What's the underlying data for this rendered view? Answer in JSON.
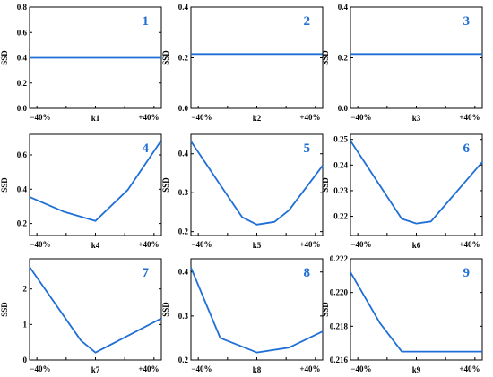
{
  "figure": {
    "line_color": "#1f6fd6",
    "number_color": "#1f6fd6"
  },
  "chart_data": [
    {
      "type": "line",
      "panel_number": "1",
      "xlabel": "k1",
      "ylabel": "SSD",
      "x_tick_labels": [
        "−40%",
        "+40%"
      ],
      "y_ticks": [
        0.0,
        0.2,
        0.4,
        0.6,
        0.8
      ],
      "y_tick_labels": [
        "0.0",
        "0.2",
        "0.4",
        "0.6",
        "0.8"
      ],
      "ylim": [
        0.0,
        0.8
      ],
      "xlim": [
        -45,
        45
      ],
      "x": [
        -45,
        45
      ],
      "y": [
        0.4,
        0.4
      ]
    },
    {
      "type": "line",
      "panel_number": "2",
      "xlabel": "k2",
      "ylabel": "SSD",
      "x_tick_labels": [
        "−40%",
        "+40%"
      ],
      "y_ticks": [
        0.0,
        0.2,
        0.4
      ],
      "y_tick_labels": [
        "0.0",
        "0.2",
        "0.4"
      ],
      "ylim": [
        0.0,
        0.4
      ],
      "xlim": [
        -45,
        45
      ],
      "x": [
        -45,
        45
      ],
      "y": [
        0.215,
        0.215
      ]
    },
    {
      "type": "line",
      "panel_number": "3",
      "xlabel": "k3",
      "ylabel": "SSD",
      "x_tick_labels": [
        "−40%",
        "+40%"
      ],
      "y_ticks": [
        0.0,
        0.2,
        0.4
      ],
      "y_tick_labels": [
        "0.0",
        "0.2",
        "0.4"
      ],
      "ylim": [
        0.0,
        0.4
      ],
      "xlim": [
        -45,
        45
      ],
      "x": [
        -45,
        45
      ],
      "y": [
        0.215,
        0.215
      ]
    },
    {
      "type": "line",
      "panel_number": "4",
      "xlabel": "k4",
      "ylabel": "SSD",
      "x_tick_labels": [
        "−40%",
        "+40%"
      ],
      "y_ticks": [
        0.2,
        0.4,
        0.6
      ],
      "y_tick_labels": [
        "0.2",
        "0.4",
        "0.6"
      ],
      "ylim": [
        0.13,
        0.72
      ],
      "xlim": [
        -45,
        45
      ],
      "x": [
        -45,
        -22,
        0,
        22,
        45
      ],
      "y": [
        0.355,
        0.27,
        0.215,
        0.395,
        0.685
      ]
    },
    {
      "type": "line",
      "panel_number": "5",
      "xlabel": "k5",
      "ylabel": "SSD",
      "x_tick_labels": [
        "−40%",
        "+40%"
      ],
      "y_ticks": [
        0.2,
        0.3,
        0.4
      ],
      "y_tick_labels": [
        "0.2",
        "0.3",
        "0.4"
      ],
      "ylim": [
        0.19,
        0.45
      ],
      "xlim": [
        -45,
        45
      ],
      "x": [
        -45,
        -25,
        -10,
        0,
        12,
        22,
        45
      ],
      "y": [
        0.432,
        0.32,
        0.237,
        0.218,
        0.225,
        0.255,
        0.37
      ]
    },
    {
      "type": "line",
      "panel_number": "6",
      "xlabel": "k6",
      "ylabel": "SSD",
      "x_tick_labels": [
        "−40%",
        "+40%"
      ],
      "y_ticks": [
        0.22,
        0.23,
        0.24,
        0.25
      ],
      "y_tick_labels": [
        "0.22",
        "0.23",
        "0.24",
        "0.25"
      ],
      "ylim": [
        0.2125,
        0.252
      ],
      "xlim": [
        -45,
        45
      ],
      "x": [
        -45,
        -10,
        0,
        10,
        45
      ],
      "y": [
        0.2495,
        0.219,
        0.2172,
        0.218,
        0.2412
      ]
    },
    {
      "type": "line",
      "panel_number": "7",
      "xlabel": "k7",
      "ylabel": "SSD",
      "x_tick_labels": [
        "−40%",
        "+40%"
      ],
      "y_ticks": [
        0,
        1,
        2
      ],
      "y_tick_labels": [
        "0",
        "1",
        "2"
      ],
      "ylim": [
        0,
        2.85
      ],
      "xlim": [
        -45,
        45
      ],
      "x": [
        -45,
        -10,
        0,
        45
      ],
      "y": [
        2.62,
        0.55,
        0.21,
        1.17
      ]
    },
    {
      "type": "line",
      "panel_number": "8",
      "xlabel": "k8",
      "ylabel": "SSD",
      "x_tick_labels": [
        "−40%",
        "+40%"
      ],
      "y_ticks": [
        0.2,
        0.3,
        0.4
      ],
      "y_tick_labels": [
        "0.2",
        "0.3",
        "0.4"
      ],
      "ylim": [
        0.2,
        0.43
      ],
      "xlim": [
        -45,
        45
      ],
      "x": [
        -45,
        -25,
        0,
        22,
        45
      ],
      "y": [
        0.41,
        0.25,
        0.217,
        0.228,
        0.265
      ]
    },
    {
      "type": "line",
      "panel_number": "9",
      "xlabel": "k9",
      "ylabel": "SSD",
      "x_tick_labels": [
        "−40%",
        "+40%"
      ],
      "y_ticks": [
        0.216,
        0.218,
        0.22,
        0.222
      ],
      "y_tick_labels": [
        "0.216",
        "0.218",
        "0.220",
        "0.222"
      ],
      "ylim": [
        0.216,
        0.222
      ],
      "xlim": [
        -45,
        45
      ],
      "x": [
        -45,
        -25,
        -10,
        45
      ],
      "y": [
        0.2212,
        0.2182,
        0.2165,
        0.2165
      ]
    }
  ]
}
